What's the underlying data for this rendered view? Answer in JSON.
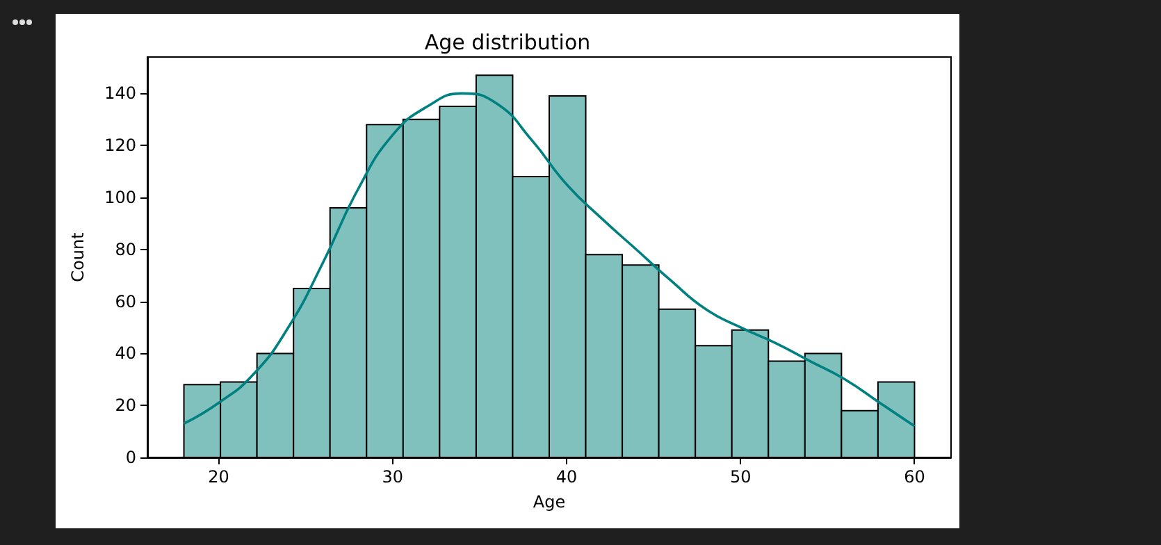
{
  "chart_data": {
    "type": "histogram",
    "title": "Age distribution",
    "xlabel": "Age",
    "ylabel": "Count",
    "bins": [
      18,
      20.1,
      22.2,
      24.3,
      26.4,
      28.5,
      30.6,
      32.7,
      34.8,
      36.9,
      39,
      41.1,
      43.2,
      45.3,
      47.4,
      49.5,
      51.6,
      53.7,
      55.8,
      57.9,
      60
    ],
    "values": [
      28,
      29,
      40,
      65,
      96,
      128,
      130,
      135,
      147,
      108,
      139,
      78,
      74,
      57,
      43,
      49,
      37,
      40,
      18,
      29
    ],
    "color": "#80c0bd",
    "series": [
      {
        "type": "line",
        "color": "#008080",
        "x": [
          18,
          20,
          22,
          24,
          26,
          28,
          30,
          32,
          34,
          36,
          38,
          40,
          42,
          44,
          46,
          48,
          50,
          52,
          54,
          56,
          58,
          60
        ],
        "values": [
          13,
          21,
          32,
          50,
          75,
          103,
          124,
          135,
          140,
          136,
          122,
          105,
          92,
          80,
          68,
          57,
          50,
          44,
          37,
          30,
          21,
          12
        ]
      }
    ],
    "xlim": [
      15.9,
      62.1
    ],
    "ylim": [
      0,
      154
    ],
    "xticks": [
      20,
      30,
      40,
      50,
      60
    ],
    "yticks": [
      0,
      20,
      40,
      60,
      80,
      100,
      120,
      140
    ],
    "grid": false
  }
}
